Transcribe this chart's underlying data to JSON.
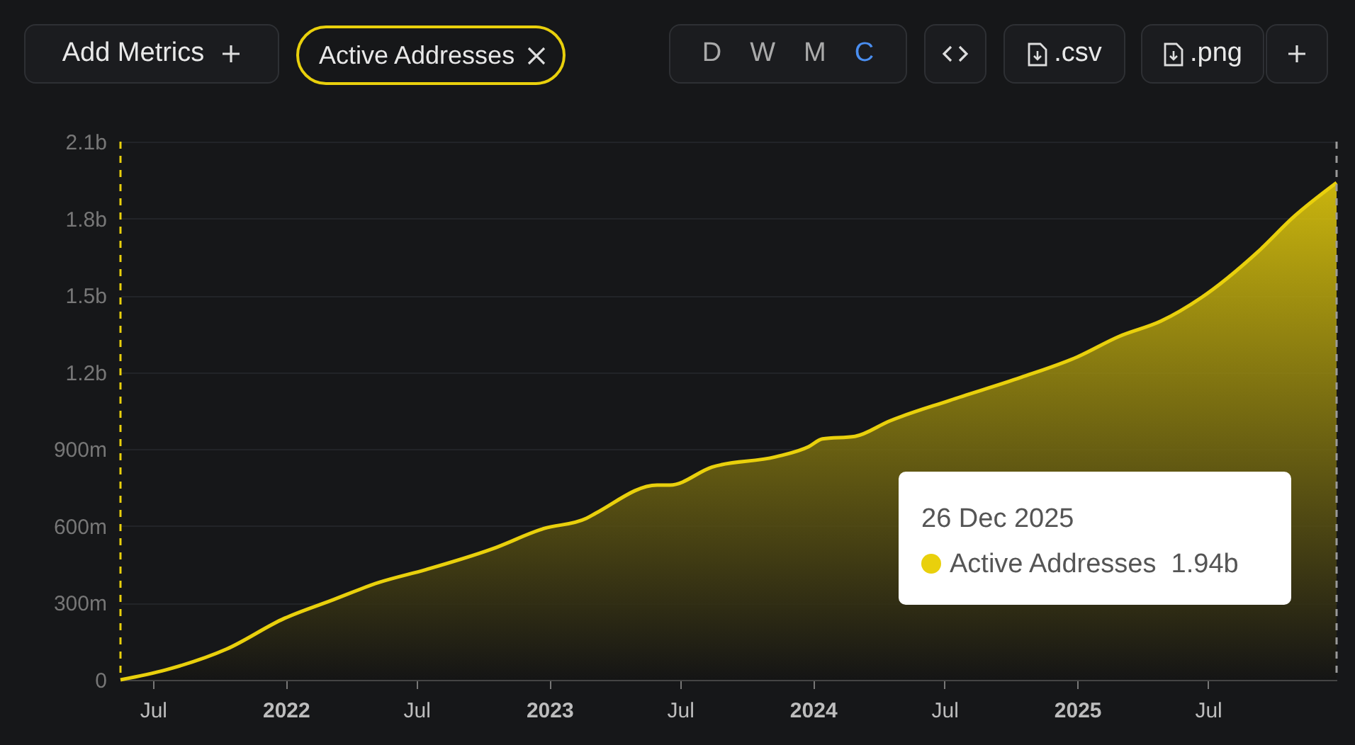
{
  "chart_data": {
    "type": "area",
    "legend": "top left",
    "grid": "y",
    "x": [
      "2021-05-17",
      "2021-07-19",
      "2021-10-11",
      "2021-12-30",
      "2022-03-05",
      "2022-05-10",
      "2022-07-14",
      "2022-10-13",
      "2022-12-24",
      "2023-02-21",
      "2023-03-06",
      "2023-05-30",
      "2023-06-17",
      "2023-08-14",
      "2023-11-10",
      "2023-12-26",
      "2024-01-14",
      "2024-02-28",
      "2024-04-16",
      "2024-07-08",
      "2024-10-15",
      "2025-01-01",
      "2025-02-28",
      "2025-04-27",
      "2025-06-21",
      "2025-09-08",
      "2025-10-29",
      "2025-12-26"
    ],
    "series": [
      {
        "name": "Active Addresses",
        "color": "#e9d00c",
        "values": [
          0,
          39000000,
          120000000,
          240000000,
          310000000,
          380000000,
          430000000,
          510000000,
          590000000,
          630000000,
          650000000,
          760000000,
          760000000,
          830000000,
          870000000,
          910000000,
          940000000,
          950000000,
          1010000000,
          1090000000,
          1180000000,
          1260000000,
          1340000000,
          1400000000,
          1490000000,
          1670000000,
          1810000000,
          1940000000
        ]
      }
    ],
    "xlim": [
      "2021-05-17",
      "2025-12-26"
    ],
    "xticks": [
      {
        "value": "2021-07-01",
        "label": "Jul"
      },
      {
        "value": "2022-01-01",
        "label": "2022"
      },
      {
        "value": "2022-07-01",
        "label": "Jul"
      },
      {
        "value": "2023-01-01",
        "label": "2023"
      },
      {
        "value": "2023-07-01",
        "label": "Jul"
      },
      {
        "value": "2024-01-01",
        "label": "2024"
      },
      {
        "value": "2024-07-01",
        "label": "Jul"
      },
      {
        "value": "2025-01-01",
        "label": "2025"
      },
      {
        "value": "2025-07-01",
        "label": "Jul"
      }
    ],
    "ylim": [
      0,
      2100000000
    ],
    "yticks": [
      {
        "value": 0,
        "label": "0"
      },
      {
        "value": 300000000,
        "label": "300m"
      },
      {
        "value": 600000000,
        "label": "600m"
      },
      {
        "value": 900000000,
        "label": "900m"
      },
      {
        "value": 1200000000,
        "label": "1.2b"
      },
      {
        "value": 1500000000,
        "label": "1.5b"
      },
      {
        "value": 1800000000,
        "label": "1.8b"
      },
      {
        "value": 2100000000,
        "label": "2.1b"
      }
    ],
    "ref_lines": [
      {
        "axis": "x",
        "value": "2021-05-17",
        "color": "#e9d00c",
        "line_style": "dashed"
      },
      {
        "axis": "x",
        "value": "2025-12-26",
        "color": "#9a9a9a",
        "line_style": "dashed"
      }
    ],
    "annotations": [
      "Add Metrics",
      "D",
      "W",
      "M",
      "C",
      ".csv",
      ".png",
      "26 Dec 2025\nActive Addresses  1.94b"
    ]
  }
}
